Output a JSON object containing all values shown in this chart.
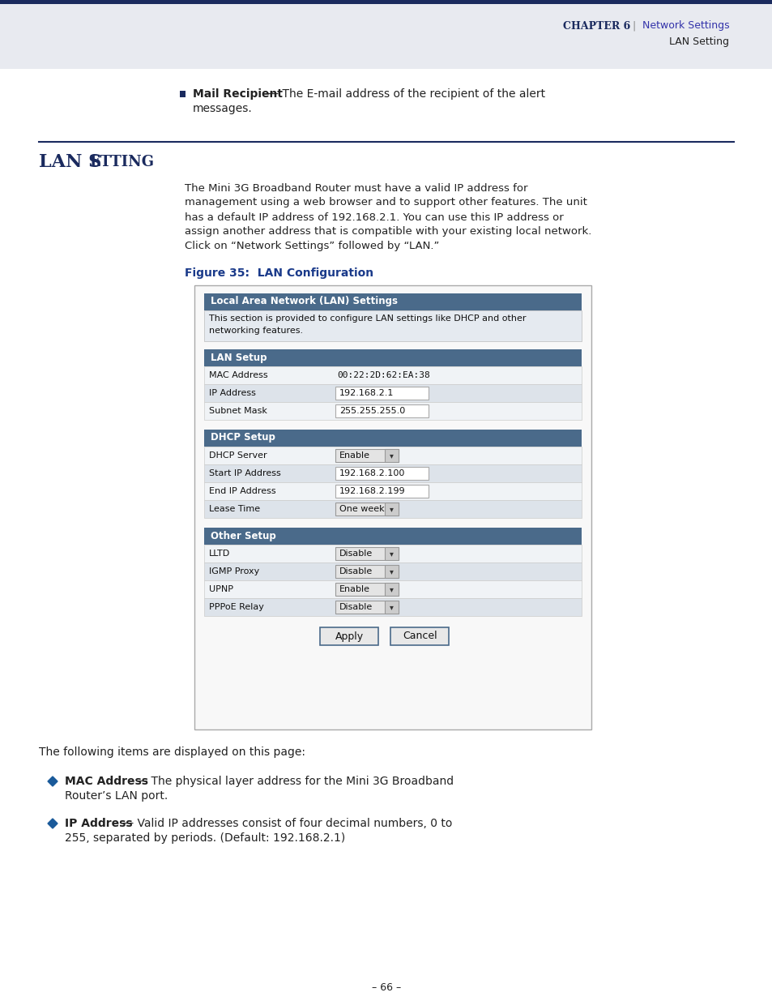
{
  "page_bg": "#ffffff",
  "header_bg": "#e8eaf0",
  "header_top_line": "#1a2a5e",
  "header_chapter": "CHAPTER 6",
  "header_right1": "Network Settings",
  "header_right2": "LAN Setting",
  "section_line_color": "#1a2a5e",
  "bullet_color": "#1a2a5e",
  "figure_label": "Figure 35:  LAN Configuration",
  "figure_label_color": "#1a3a8a",
  "section_header_bg": "#4a6a8a",
  "body_text_color": "#222222",
  "following_text": "The following items are displayed on this page:",
  "bullet2_bold": "MAC Address",
  "bullet2_rest": " — The physical layer address for the Mini 3G Broadband",
  "bullet2_line2": "Router’s LAN port.",
  "bullet3_bold": "IP Address",
  "bullet3_rest": " — Valid IP addresses consist of four decimal numbers, 0 to",
  "bullet3_line2": "255, separated by periods. (Default: 192.168.2.1)",
  "footer_text": "– 66 –",
  "body_para_lines": [
    "The Mini 3G Broadband Router must have a valid IP address for",
    "management using a web browser and to support other features. The unit",
    "has a default IP address of 192.168.2.1. You can use this IP address or",
    "assign another address that is compatible with your existing local network.",
    "Click on “Network Settings” followed by “LAN.”"
  ]
}
